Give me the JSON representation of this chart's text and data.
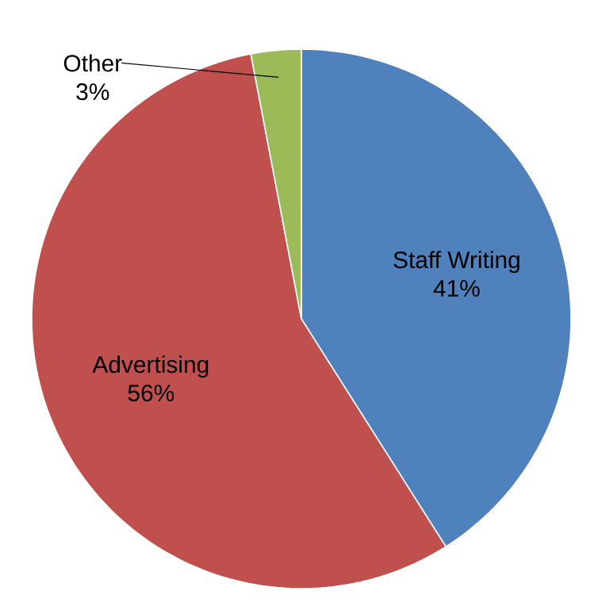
{
  "chart_data": {
    "type": "pie",
    "categories": [
      "Staff Writing",
      "Advertising",
      "Other"
    ],
    "values": [
      41,
      56,
      3
    ],
    "value_labels": [
      "41%",
      "56%",
      "3%"
    ],
    "colors": [
      "#4f81bd",
      "#c0504d",
      "#9bbb59"
    ]
  }
}
